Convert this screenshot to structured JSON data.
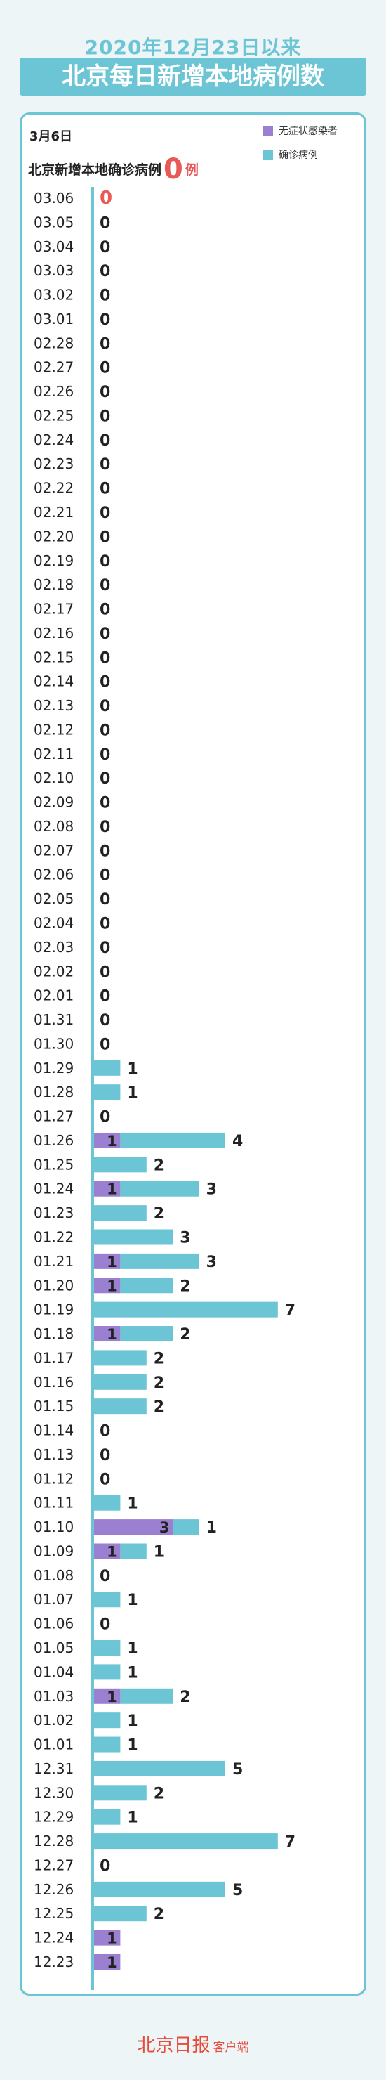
{
  "header": {
    "title_line1": "2020年12月23日以来",
    "title_line2": "北京每日新增本地病例数"
  },
  "summary": {
    "date": "3月6日",
    "label": "北京新增本地确诊病例",
    "count": "0",
    "unit": "例"
  },
  "legend": {
    "asymptomatic": "无症状感染者",
    "confirmed": "确诊病例"
  },
  "colors": {
    "asymptomatic": "#9b7fd1",
    "confirmed": "#6cc5d5",
    "highlight": "#e85a58"
  },
  "footer": {
    "brand": "北京日报",
    "suffix": "客户端"
  },
  "chart_data": {
    "type": "bar",
    "orientation": "horizontal",
    "categories": [
      "03.06",
      "03.05",
      "03.04",
      "03.03",
      "03.02",
      "03.01",
      "02.28",
      "02.27",
      "02.26",
      "02.25",
      "02.24",
      "02.23",
      "02.22",
      "02.21",
      "02.20",
      "02.19",
      "02.18",
      "02.17",
      "02.16",
      "02.15",
      "02.14",
      "02.13",
      "02.12",
      "02.11",
      "02.10",
      "02.09",
      "02.08",
      "02.07",
      "02.06",
      "02.05",
      "02.04",
      "02.03",
      "02.02",
      "02.01",
      "01.31",
      "01.30",
      "01.29",
      "01.28",
      "01.27",
      "01.26",
      "01.25",
      "01.24",
      "01.23",
      "01.22",
      "01.21",
      "01.20",
      "01.19",
      "01.18",
      "01.17",
      "01.16",
      "01.15",
      "01.14",
      "01.13",
      "01.12",
      "01.11",
      "01.10",
      "01.09",
      "01.08",
      "01.07",
      "01.06",
      "01.05",
      "01.04",
      "01.03",
      "01.02",
      "01.01",
      "12.31",
      "12.30",
      "12.29",
      "12.28",
      "12.27",
      "12.26",
      "12.25",
      "12.24",
      "12.23"
    ],
    "series": [
      {
        "name": "无症状感染者",
        "values": [
          0,
          0,
          0,
          0,
          0,
          0,
          0,
          0,
          0,
          0,
          0,
          0,
          0,
          0,
          0,
          0,
          0,
          0,
          0,
          0,
          0,
          0,
          0,
          0,
          0,
          0,
          0,
          0,
          0,
          0,
          0,
          0,
          0,
          0,
          0,
          0,
          0,
          0,
          0,
          1,
          0,
          1,
          0,
          0,
          1,
          1,
          0,
          1,
          0,
          0,
          0,
          0,
          0,
          0,
          0,
          3,
          1,
          0,
          0,
          0,
          0,
          0,
          1,
          0,
          0,
          0,
          0,
          0,
          0,
          0,
          0,
          0,
          1,
          1
        ]
      },
      {
        "name": "确诊病例",
        "values": [
          0,
          0,
          0,
          0,
          0,
          0,
          0,
          0,
          0,
          0,
          0,
          0,
          0,
          0,
          0,
          0,
          0,
          0,
          0,
          0,
          0,
          0,
          0,
          0,
          0,
          0,
          0,
          0,
          0,
          0,
          0,
          0,
          0,
          0,
          0,
          0,
          1,
          1,
          0,
          4,
          2,
          3,
          2,
          3,
          3,
          2,
          7,
          2,
          2,
          2,
          2,
          0,
          0,
          0,
          1,
          1,
          1,
          0,
          1,
          0,
          1,
          1,
          2,
          1,
          1,
          5,
          2,
          1,
          7,
          0,
          5,
          2,
          0,
          0
        ]
      }
    ]
  }
}
